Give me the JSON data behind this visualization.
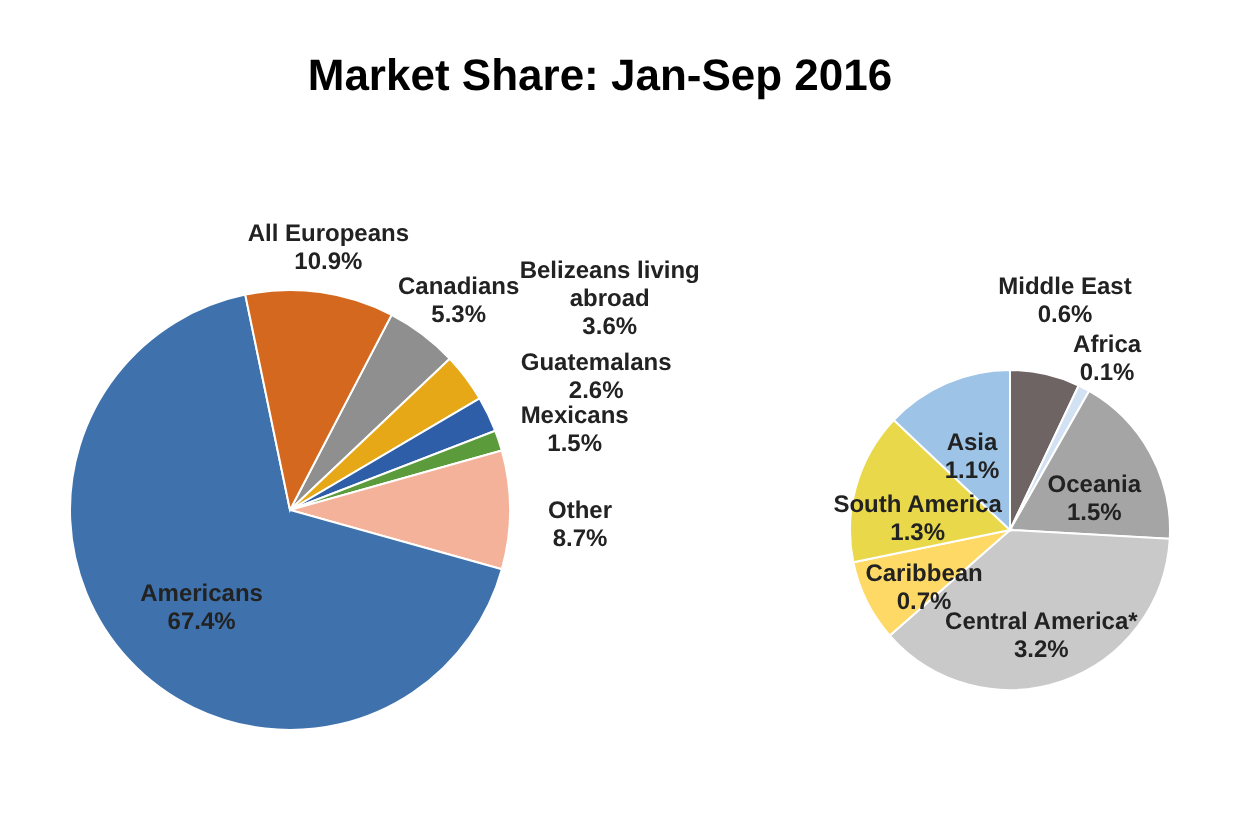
{
  "chart_data": [
    {
      "type": "pie",
      "title": "Market Share: Jan-Sep 2016",
      "categories": [
        "Canadians",
        "Belizeans living abroad",
        "Guatemalans",
        "Mexicans",
        "Other",
        "Americans",
        "All Europeans"
      ],
      "values": [
        5.3,
        3.6,
        2.6,
        1.5,
        8.7,
        67.4,
        10.9
      ],
      "value_labels": [
        "5.3%",
        "3.6%",
        "2.6%",
        "1.5%",
        "8.7%",
        "67.4%",
        "10.9%"
      ],
      "colors": [
        "#8f8f8f",
        "#e6a817",
        "#2f5ea8",
        "#5b9b3c",
        "#f4b29a",
        "#3f72ad",
        "#d4681f"
      ]
    },
    {
      "type": "pie",
      "categories": [
        "Middle East",
        "Africa",
        "Oceania",
        "Central America*",
        "Caribbean",
        "South America",
        "Asia"
      ],
      "values": [
        0.6,
        0.1,
        1.5,
        3.2,
        0.7,
        1.3,
        1.1
      ],
      "value_labels": [
        "0.6%",
        "0.1%",
        "1.5%",
        "3.2%",
        "0.7%",
        "1.3%",
        "1.1%"
      ],
      "colors": [
        "#6e6464",
        "#d3e2f3",
        "#a5a5a5",
        "#c9c9c9",
        "#ffd966",
        "#e9d84a",
        "#9dc3e6"
      ]
    }
  ]
}
